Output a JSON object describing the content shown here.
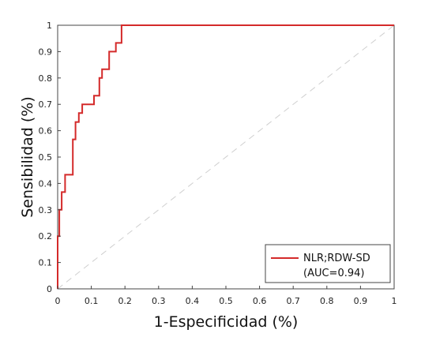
{
  "chart_data": {
    "type": "line",
    "xlabel": "1-Especificidad (%)",
    "ylabel": "Sensibilidad (%)",
    "xlim": [
      0,
      1
    ],
    "ylim": [
      0,
      1
    ],
    "xticks": [
      "0",
      "0.1",
      "0.2",
      "0.3",
      "0.4",
      "0.5",
      "0.6",
      "0.7",
      "0.8",
      "0.9",
      "1"
    ],
    "yticks": [
      "0",
      "0.1",
      "0.2",
      "0.3",
      "0.4",
      "0.5",
      "0.6",
      "0.7",
      "0.8",
      "0.9",
      "1"
    ],
    "grid": false,
    "legend_position": "bottom-right",
    "series": [
      {
        "name": "NLR;RDW-SD",
        "name_line2": "(AUC=0.94)",
        "color": "#d42a2a",
        "x": [
          0,
          0,
          0.005,
          0.005,
          0.012,
          0.012,
          0.022,
          0.022,
          0.045,
          0.045,
          0.053,
          0.053,
          0.063,
          0.063,
          0.073,
          0.073,
          0.108,
          0.108,
          0.124,
          0.124,
          0.132,
          0.132,
          0.153,
          0.153,
          0.173,
          0.173,
          0.19,
          0.19,
          1.0
        ],
        "y": [
          0,
          0.2,
          0.2,
          0.3,
          0.3,
          0.367,
          0.367,
          0.433,
          0.433,
          0.567,
          0.567,
          0.633,
          0.633,
          0.667,
          0.667,
          0.7,
          0.7,
          0.733,
          0.733,
          0.8,
          0.8,
          0.833,
          0.833,
          0.9,
          0.9,
          0.933,
          0.933,
          1.0,
          1.0
        ]
      },
      {
        "name": "",
        "style": "dashed",
        "color": "#cfcfcf",
        "x": [
          0,
          1
        ],
        "y": [
          0,
          1
        ]
      }
    ]
  }
}
